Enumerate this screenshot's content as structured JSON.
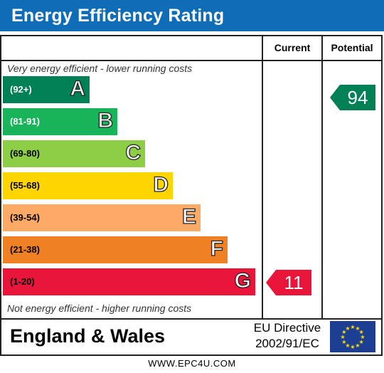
{
  "title": "Energy Efficiency Rating",
  "columns": {
    "current": "Current",
    "potential": "Potential"
  },
  "captions": {
    "top": "Very energy efficient - lower running costs",
    "bottom": "Not energy efficient - higher running costs"
  },
  "bands": [
    {
      "range": "(92+)",
      "letter": "A",
      "color": "#008054"
    },
    {
      "range": "(81-91)",
      "letter": "B",
      "color": "#19b459"
    },
    {
      "range": "(69-80)",
      "letter": "C",
      "color": "#8dce46"
    },
    {
      "range": "(55-68)",
      "letter": "D",
      "color": "#ffd500"
    },
    {
      "range": "(39-54)",
      "letter": "E",
      "color": "#fcaa65"
    },
    {
      "range": "(21-38)",
      "letter": "F",
      "color": "#ef8023"
    },
    {
      "range": "(1-20)",
      "letter": "G",
      "color": "#e9153b"
    }
  ],
  "ratings": {
    "current": {
      "value": "11",
      "band": "G",
      "color": "#e9153b"
    },
    "potential": {
      "value": "94",
      "band": "A",
      "color": "#008054"
    }
  },
  "footer": {
    "country": "England & Wales",
    "directive_line1": "EU Directive",
    "directive_line2": "2002/91/EC"
  },
  "website": "WWW.EPC4U.COM",
  "colors": {
    "title_bar": "#0f6cb7",
    "eu_flag": "#1c3f94",
    "eu_stars": "#ffdd00"
  }
}
